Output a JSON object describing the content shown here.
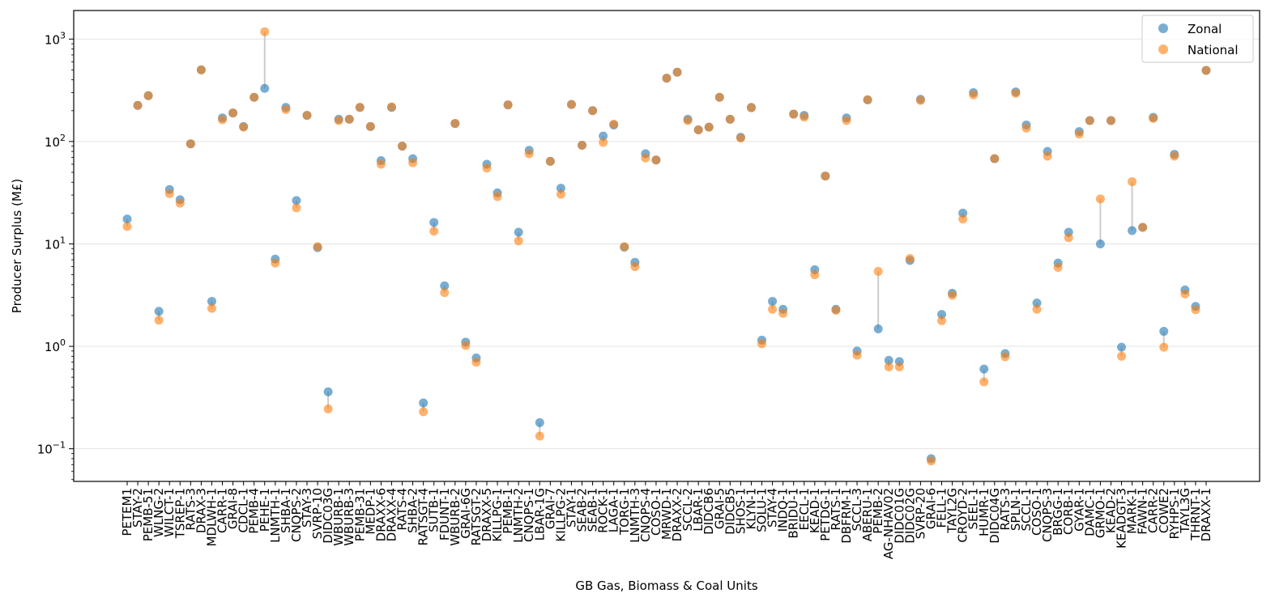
{
  "chart_data": {
    "type": "scatter",
    "xlabel": "GB Gas, Biomass & Coal Units",
    "ylabel": "Producer Surplus (M£)",
    "yscale": "log",
    "ylim": [
      0.048,
      1900
    ],
    "yticks": [
      {
        "value": 0.1,
        "base": "10",
        "exp": "−1"
      },
      {
        "value": 1,
        "base": "10",
        "exp": "0"
      },
      {
        "value": 10,
        "base": "10",
        "exp": "1"
      },
      {
        "value": 100,
        "base": "10",
        "exp": "2"
      },
      {
        "value": 1000,
        "base": "10",
        "exp": "3"
      }
    ],
    "grid": "horizontal",
    "legend_position": "top-right",
    "connector_color": "#cccccc",
    "categories": [
      "PETEM1",
      "STAY-2",
      "PEMB-51",
      "WLNG-2",
      "WILCT-1",
      "TSREP-1",
      "RATS-3",
      "DRAX-3",
      "MDLWH-1",
      "CARR-1",
      "GRAI-8",
      "CDCL-1",
      "PEMB-4",
      "PEHE-1",
      "LNMTH-1",
      "SHBA-1",
      "CNQPS-2",
      "STAY-3",
      "SVRP-10",
      "DIDC03G",
      "WBURB-1",
      "WBURB-3",
      "PEMB-31",
      "MEDP-1",
      "DRAXX-6",
      "DRAXX-4",
      "RATS-4",
      "SHBA-2",
      "RATSGT-4",
      "SUTB-1",
      "FDUNT-1",
      "WBURB-2",
      "GRAI-6G",
      "RATSGT-2",
      "DRAXX-5",
      "KILLPG-1",
      "PEMB-1",
      "LNMTH-2",
      "CNQPS-1",
      "LBAR-1G",
      "GRAI-7",
      "KILLPG-2",
      "STAY-1",
      "SEAB-2",
      "SEAB-1",
      "ROCK-1",
      "LAGA-1",
      "TORG-1",
      "LNMTH-3",
      "CNQPS-4",
      "COSO-1",
      "MRWD-1",
      "DRAXX-2",
      "SCCL-2",
      "LBAR-1",
      "DIDCB6",
      "GRAI-5",
      "DIDCB5",
      "SHOS-1",
      "KLYN-1",
      "SOLU-1",
      "STAY-4",
      "INDQ-1",
      "BRIDU-1",
      "EECL-1",
      "KEAD-1",
      "PETDG-1",
      "RATS-1",
      "DBFRM-1",
      "SCCL-3",
      "ABERU-1",
      "PEMB-2",
      "AG-NHAV02",
      "DIDC01G",
      "DIDC02G",
      "SVRP-20",
      "GRAI-6",
      "FELL-1",
      "TAYL2G",
      "CROYD-2",
      "SEEL-1",
      "HUMR-1",
      "DIDC04G",
      "RATS-3",
      "SPLN-1",
      "SCCL-1",
      "COSO-1",
      "CNQPS-3",
      "BRGG-1",
      "CORB-1",
      "GYAR-1",
      "DAMC-1",
      "GRMO-1",
      "KEAD-2",
      "KEADGT-3",
      "MARK-1",
      "FAWN-1",
      "CARR-2",
      "COWE2",
      "RYHPS-1",
      "TAYL3G",
      "THRNT-1",
      "DRAXX-1"
    ],
    "series": [
      {
        "name": "Zonal",
        "color": "#1f77b4",
        "values": [
          17.5,
          225,
          280,
          2.2,
          34,
          27,
          95,
          500,
          2.75,
          170,
          190,
          140,
          270,
          330,
          7.1,
          215,
          26.5,
          180,
          9.2,
          0.36,
          165,
          165,
          215,
          140,
          65,
          215,
          90,
          68,
          0.28,
          16.2,
          3.9,
          150,
          1.1,
          0.77,
          60,
          31.5,
          228,
          13,
          82,
          0.18,
          64,
          35,
          230,
          92,
          200,
          113,
          145,
          9.3,
          6.6,
          76,
          66,
          415,
          475,
          165,
          130,
          138,
          270,
          165,
          110,
          215,
          1.15,
          2.75,
          2.3,
          185,
          180,
          5.6,
          46,
          2.3,
          170,
          0.9,
          255,
          1.48,
          0.73,
          0.71,
          6.9,
          258,
          0.08,
          2.05,
          3.3,
          20,
          300,
          0.6,
          68,
          0.85,
          305,
          145,
          2.65,
          80,
          6.5,
          13,
          125,
          160,
          10,
          160,
          0.98,
          13.5,
          14.5,
          172,
          1.4,
          75,
          3.55,
          2.45,
          495
        ]
      },
      {
        "name": "National",
        "color": "#ff7f0e",
        "values": [
          14.8,
          225,
          280,
          1.8,
          31,
          25,
          95,
          500,
          2.35,
          163,
          190,
          138,
          270,
          1180,
          6.5,
          205,
          22.5,
          180,
          9.4,
          0.245,
          160,
          165,
          215,
          140,
          60,
          218,
          90,
          62,
          0.23,
          13.3,
          3.35,
          150,
          1.02,
          0.7,
          55,
          29,
          228,
          10.7,
          76,
          0.133,
          64,
          30.5,
          230,
          92,
          200,
          98,
          148,
          9.4,
          6,
          69,
          66,
          415,
          475,
          160,
          130,
          138,
          270,
          165,
          108,
          213,
          1.06,
          2.3,
          2.1,
          185,
          173,
          5,
          46,
          2.25,
          160,
          0.82,
          255,
          5.4,
          0.63,
          0.63,
          7.2,
          252,
          0.076,
          1.78,
          3.15,
          17.5,
          285,
          0.45,
          68,
          0.79,
          295,
          135,
          2.3,
          72,
          5.9,
          11.5,
          118,
          160,
          27.5,
          160,
          0.8,
          40.5,
          14.5,
          168,
          0.98,
          72,
          3.25,
          2.28,
          495
        ]
      }
    ]
  }
}
